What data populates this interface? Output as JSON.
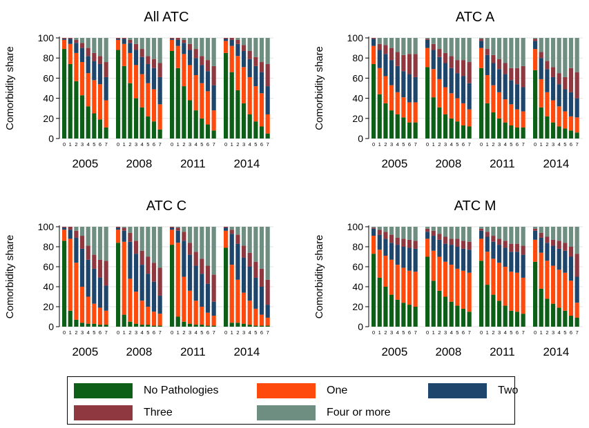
{
  "legend": {
    "items": [
      {
        "label": "No Pathologies",
        "color": "#0d5e16"
      },
      {
        "label": "One",
        "color": "#ff4a0e"
      },
      {
        "label": "Two",
        "color": "#1e466c"
      },
      {
        "label": "Three",
        "color": "#8f3840"
      },
      {
        "label": "Four or more",
        "color": "#6f8e82"
      }
    ]
  },
  "chart_data": [
    {
      "type": "bar",
      "stacked": true,
      "title": "All ATC",
      "ylabel": "Comorbidity share",
      "ylim": [
        0,
        100
      ],
      "yticks": [
        0,
        20,
        40,
        60,
        80,
        100
      ],
      "grid": true,
      "groups": [
        "2005",
        "2008",
        "2011",
        "2014"
      ],
      "categories": [
        "0",
        "1",
        "2",
        "3",
        "4",
        "5",
        "6",
        "7"
      ],
      "series_names": [
        "No Pathologies",
        "One",
        "Two",
        "Three",
        "Four or more"
      ],
      "data": {
        "2005": [
          [
            89,
            9,
            1,
            1,
            0
          ],
          [
            74,
            20,
            5,
            1,
            0
          ],
          [
            57,
            28,
            10,
            3,
            2
          ],
          [
            43,
            33,
            14,
            5,
            5
          ],
          [
            32,
            33,
            17,
            8,
            10
          ],
          [
            25,
            33,
            19,
            8,
            15
          ],
          [
            19,
            35,
            20,
            8,
            18
          ],
          [
            11,
            27,
            23,
            15,
            24
          ]
        ],
        "2008": [
          [
            88,
            10,
            1,
            1,
            0
          ],
          [
            72,
            22,
            5,
            1,
            0
          ],
          [
            55,
            30,
            10,
            3,
            2
          ],
          [
            40,
            33,
            15,
            6,
            6
          ],
          [
            31,
            33,
            17,
            8,
            11
          ],
          [
            22,
            33,
            19,
            8,
            18
          ],
          [
            17,
            32,
            21,
            9,
            21
          ],
          [
            9,
            25,
            27,
            14,
            25
          ]
        ],
        "2011": [
          [
            87,
            11,
            1,
            1,
            0
          ],
          [
            70,
            22,
            6,
            2,
            0
          ],
          [
            52,
            32,
            11,
            3,
            2
          ],
          [
            38,
            35,
            15,
            6,
            6
          ],
          [
            28,
            35,
            17,
            9,
            11
          ],
          [
            20,
            35,
            18,
            9,
            18
          ],
          [
            14,
            33,
            20,
            11,
            22
          ],
          [
            8,
            20,
            25,
            19,
            28
          ]
        ],
        "2014": [
          [
            85,
            12,
            2,
            1,
            0
          ],
          [
            66,
            26,
            6,
            2,
            0
          ],
          [
            48,
            34,
            12,
            4,
            2
          ],
          [
            35,
            36,
            16,
            6,
            7
          ],
          [
            24,
            37,
            18,
            8,
            13
          ],
          [
            17,
            35,
            20,
            9,
            19
          ],
          [
            12,
            33,
            21,
            10,
            24
          ],
          [
            5,
            19,
            28,
            22,
            26
          ]
        ]
      }
    },
    {
      "type": "bar",
      "stacked": true,
      "title": "ATC A",
      "ylabel": "Comorbidity share",
      "ylim": [
        0,
        100
      ],
      "yticks": [
        0,
        20,
        40,
        60,
        80,
        100
      ],
      "grid": true,
      "groups": [
        "2005",
        "2008",
        "2011",
        "2014"
      ],
      "categories": [
        "0",
        "1",
        "2",
        "3",
        "4",
        "5",
        "6",
        "7"
      ],
      "series_names": [
        "No Pathologies",
        "One",
        "Two",
        "Three",
        "Four or more"
      ],
      "data": {
        "2005": [
          [
            74,
            18,
            7,
            1,
            0
          ],
          [
            44,
            26,
            18,
            6,
            6
          ],
          [
            35,
            27,
            22,
            9,
            7
          ],
          [
            28,
            25,
            25,
            12,
            10
          ],
          [
            24,
            22,
            26,
            14,
            14
          ],
          [
            21,
            20,
            26,
            16,
            17
          ],
          [
            16,
            20,
            28,
            20,
            16
          ],
          [
            16,
            20,
            25,
            23,
            16
          ]
        ],
        "2008": [
          [
            71,
            19,
            8,
            1,
            1
          ],
          [
            41,
            28,
            19,
            6,
            6
          ],
          [
            31,
            28,
            22,
            8,
            11
          ],
          [
            24,
            27,
            24,
            10,
            15
          ],
          [
            20,
            25,
            25,
            12,
            18
          ],
          [
            17,
            23,
            25,
            13,
            22
          ],
          [
            13,
            22,
            27,
            16,
            22
          ],
          [
            12,
            17,
            26,
            21,
            24
          ]
        ],
        "2011": [
          [
            70,
            20,
            7,
            2,
            1
          ],
          [
            35,
            28,
            20,
            6,
            11
          ],
          [
            26,
            27,
            22,
            8,
            17
          ],
          [
            20,
            26,
            23,
            10,
            21
          ],
          [
            16,
            23,
            25,
            11,
            25
          ],
          [
            13,
            21,
            24,
            12,
            30
          ],
          [
            11,
            18,
            25,
            16,
            30
          ],
          [
            11,
            16,
            24,
            21,
            28
          ]
        ],
        "2014": [
          [
            68,
            21,
            8,
            2,
            1
          ],
          [
            31,
            28,
            21,
            6,
            14
          ],
          [
            22,
            24,
            23,
            8,
            23
          ],
          [
            16,
            22,
            23,
            10,
            29
          ],
          [
            12,
            20,
            22,
            11,
            35
          ],
          [
            10,
            17,
            22,
            12,
            39
          ],
          [
            8,
            14,
            24,
            24,
            30
          ],
          [
            6,
            15,
            19,
            26,
            34
          ]
        ]
      }
    },
    {
      "type": "bar",
      "stacked": true,
      "title": "ATC C",
      "ylabel": "Comorbidity share",
      "ylim": [
        0,
        100
      ],
      "yticks": [
        0,
        20,
        40,
        60,
        80,
        100
      ],
      "grid": true,
      "groups": [
        "2005",
        "2008",
        "2011",
        "2014"
      ],
      "categories": [
        "0",
        "1",
        "2",
        "3",
        "4",
        "5",
        "6",
        "7"
      ],
      "series_names": [
        "No Pathologies",
        "One",
        "Two",
        "Three",
        "Four or more"
      ],
      "data": {
        "2005": [
          [
            86,
            11,
            2,
            1,
            0
          ],
          [
            16,
            72,
            9,
            3,
            0
          ],
          [
            7,
            57,
            25,
            7,
            4
          ],
          [
            4,
            36,
            38,
            13,
            9
          ],
          [
            3,
            27,
            37,
            14,
            19
          ],
          [
            3,
            20,
            35,
            14,
            28
          ],
          [
            2,
            17,
            30,
            18,
            33
          ],
          [
            2,
            14,
            25,
            25,
            34
          ]
        ],
        "2008": [
          [
            84,
            13,
            2,
            1,
            0
          ],
          [
            12,
            73,
            11,
            3,
            1
          ],
          [
            5,
            43,
            37,
            9,
            6
          ],
          [
            3,
            32,
            38,
            13,
            14
          ],
          [
            2,
            24,
            36,
            14,
            24
          ],
          [
            2,
            18,
            33,
            17,
            30
          ],
          [
            1,
            14,
            30,
            19,
            36
          ],
          [
            1,
            12,
            18,
            28,
            41
          ]
        ],
        "2011": [
          [
            82,
            15,
            2,
            1,
            0
          ],
          [
            10,
            74,
            12,
            3,
            1
          ],
          [
            5,
            45,
            36,
            9,
            5
          ],
          [
            3,
            33,
            36,
            12,
            16
          ],
          [
            2,
            24,
            35,
            14,
            25
          ],
          [
            2,
            18,
            33,
            15,
            32
          ],
          [
            1,
            13,
            29,
            18,
            39
          ],
          [
            1,
            10,
            14,
            27,
            48
          ]
        ],
        "2014": [
          [
            79,
            17,
            3,
            1,
            0
          ],
          [
            4,
            58,
            31,
            4,
            3
          ],
          [
            4,
            43,
            36,
            9,
            8
          ],
          [
            3,
            31,
            35,
            12,
            19
          ],
          [
            2,
            24,
            34,
            14,
            26
          ],
          [
            1,
            17,
            31,
            16,
            35
          ],
          [
            1,
            11,
            28,
            18,
            42
          ],
          [
            1,
            8,
            13,
            25,
            53
          ]
        ]
      }
    },
    {
      "type": "bar",
      "stacked": true,
      "title": "ATC M",
      "ylabel": "Comorbidity share",
      "ylim": [
        0,
        100
      ],
      "yticks": [
        0,
        20,
        40,
        60,
        80,
        100
      ],
      "grid": true,
      "groups": [
        "2005",
        "2008",
        "2011",
        "2014"
      ],
      "categories": [
        "0",
        "1",
        "2",
        "3",
        "4",
        "5",
        "6",
        "7"
      ],
      "series_names": [
        "No Pathologies",
        "One",
        "Two",
        "Three",
        "Four or more"
      ],
      "data": {
        "2005": [
          [
            73,
            18,
            7,
            1,
            1
          ],
          [
            49,
            28,
            15,
            5,
            3
          ],
          [
            40,
            31,
            17,
            7,
            5
          ],
          [
            32,
            35,
            17,
            8,
            8
          ],
          [
            27,
            35,
            20,
            7,
            11
          ],
          [
            24,
            35,
            21,
            8,
            12
          ],
          [
            22,
            34,
            23,
            8,
            13
          ],
          [
            20,
            35,
            23,
            8,
            14
          ]
        ],
        "2008": [
          [
            70,
            18,
            7,
            3,
            2
          ],
          [
            46,
            30,
            15,
            5,
            4
          ],
          [
            36,
            34,
            17,
            6,
            7
          ],
          [
            30,
            35,
            18,
            7,
            10
          ],
          [
            25,
            37,
            20,
            6,
            12
          ],
          [
            21,
            37,
            22,
            8,
            12
          ],
          [
            18,
            38,
            22,
            8,
            14
          ],
          [
            15,
            39,
            23,
            8,
            15
          ]
        ],
        "2011": [
          [
            66,
            22,
            8,
            2,
            2
          ],
          [
            42,
            33,
            15,
            5,
            5
          ],
          [
            32,
            36,
            17,
            6,
            9
          ],
          [
            26,
            38,
            18,
            6,
            12
          ],
          [
            21,
            39,
            19,
            7,
            14
          ],
          [
            16,
            39,
            20,
            8,
            17
          ],
          [
            15,
            39,
            21,
            8,
            17
          ],
          [
            13,
            36,
            23,
            9,
            19
          ]
        ],
        "2014": [
          [
            65,
            22,
            9,
            2,
            2
          ],
          [
            38,
            36,
            15,
            5,
            6
          ],
          [
            28,
            38,
            18,
            6,
            10
          ],
          [
            23,
            38,
            20,
            6,
            13
          ],
          [
            19,
            38,
            21,
            8,
            14
          ],
          [
            16,
            38,
            22,
            8,
            16
          ],
          [
            11,
            35,
            24,
            10,
            20
          ],
          [
            9,
            15,
            26,
            23,
            27
          ]
        ]
      }
    }
  ]
}
